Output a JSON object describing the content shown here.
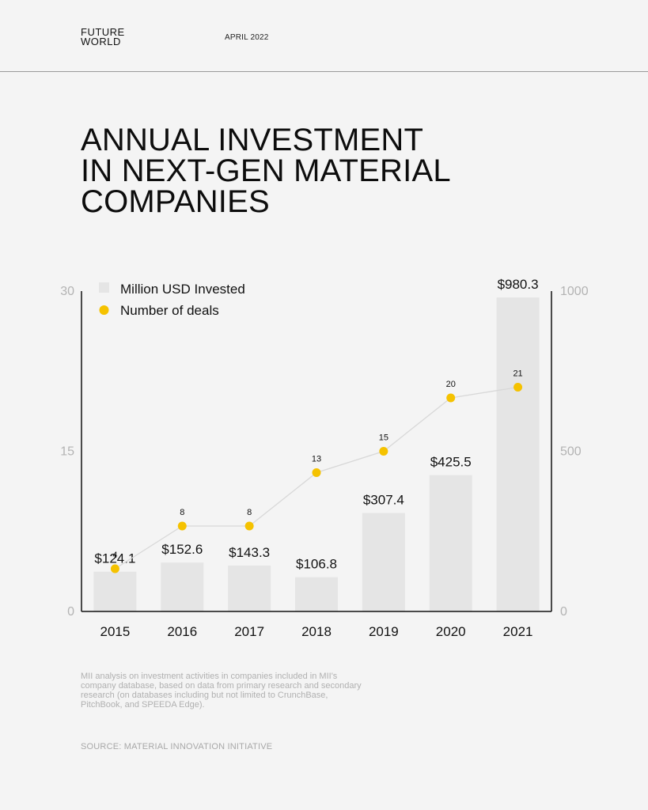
{
  "header": {
    "logo_line1": "FUTURE",
    "logo_line2": "WORLD",
    "date": "APRIL 2022",
    "title_lines": [
      "ANNUAL INVESTMENT",
      "IN NEXT-GEN MATERIAL",
      "COMPANIES"
    ]
  },
  "chart_data": {
    "type": "bar",
    "title": "ANNUAL INVESTMENT IN NEXT-GEN MATERIAL COMPANIES",
    "categories": [
      "2015",
      "2016",
      "2017",
      "2018",
      "2019",
      "2020",
      "2021"
    ],
    "series": [
      {
        "name": "Million USD Invested",
        "type": "bar",
        "axis": "right",
        "values": [
          124.1,
          152.6,
          143.3,
          106.8,
          307.4,
          425.5,
          980.3
        ],
        "labels": [
          "$124.1",
          "$152.6",
          "$143.3",
          "$106.8",
          "$307.4",
          "$425.5",
          "$980.3"
        ],
        "color": "#e5e5e5"
      },
      {
        "name": "Number of deals",
        "type": "line",
        "axis": "left",
        "values": [
          4,
          8,
          8,
          13,
          15,
          20,
          21
        ],
        "labels": [
          "4",
          "8",
          "8",
          "13",
          "15",
          "20",
          "21"
        ],
        "color": "#f5c200"
      }
    ],
    "left_axis": {
      "ylim": [
        0,
        30
      ],
      "ticks": [
        0,
        15,
        30
      ],
      "tick_labels": [
        "0",
        "15",
        "30"
      ]
    },
    "right_axis": {
      "ylim": [
        0,
        1000
      ],
      "ticks": [
        0,
        500,
        1000
      ],
      "tick_labels": [
        "0",
        "500",
        "1000"
      ]
    },
    "legend_position": "top-left",
    "grid": false
  },
  "footer": {
    "note": "MII analysis on investment activities in companies included in MII's company database, based on data from primary research and secondary research (on databases including but not limited to CrunchBase, PitchBook, and SPEEDA Edge).",
    "source": "SOURCE: MATERIAL INNOVATION INITIATIVE"
  },
  "colors": {
    "background": "#f4f4f4",
    "bar": "#e5e5e5",
    "dot": "#f5c200",
    "line": "#d8d8d8",
    "axis": "#111111",
    "tick_text": "#b3b3b3"
  }
}
